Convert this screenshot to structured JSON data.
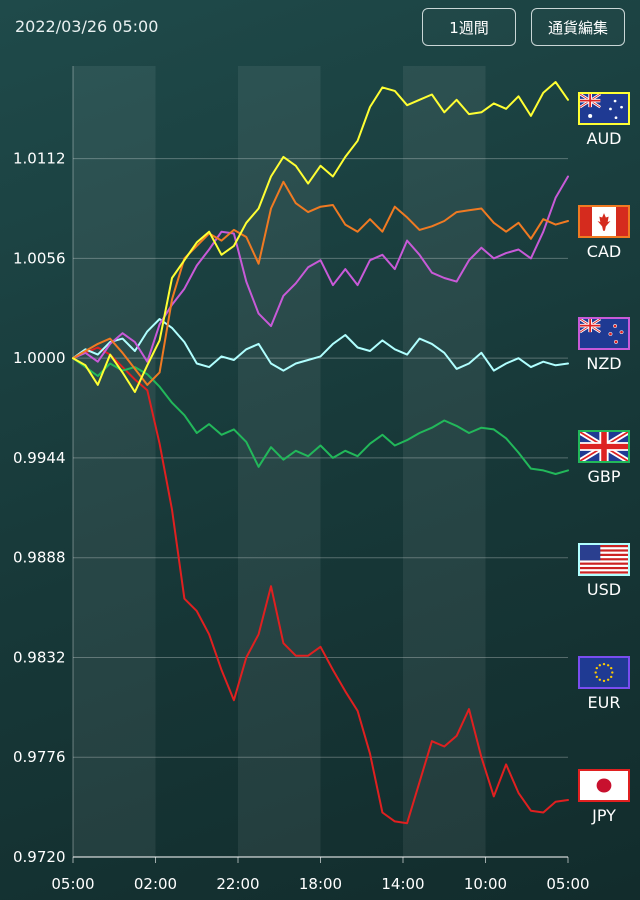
{
  "header": {
    "timestamp": "2022/03/26 05:00",
    "period_button": "1週間",
    "edit_button": "通貨編集"
  },
  "colors": {
    "AUD": "#ffff33",
    "CAD": "#f07a22",
    "NZD": "#c85ad8",
    "GBP": "#22b85a",
    "USD": "#b0ffff",
    "EUR": "#7a4df0",
    "JPY": "#e02020"
  },
  "chart_data": {
    "type": "line",
    "x_tick_labels": [
      "05:00",
      "02:00",
      "22:00",
      "18:00",
      "14:00",
      "10:00",
      "05:00"
    ],
    "y_tick_labels": [
      "1.0112",
      "1.0056",
      "1.0000",
      "0.9944",
      "0.9888",
      "0.9832",
      "0.9776",
      "0.9720"
    ],
    "ylim": [
      0.972,
      1.0164
    ],
    "grid": true,
    "legend_position": "right",
    "x": [
      0,
      3,
      6,
      9,
      12,
      15,
      18,
      21,
      24,
      27,
      30,
      33,
      36,
      39,
      42,
      45,
      48,
      51,
      54,
      57,
      60,
      63,
      66,
      69,
      72,
      75,
      78,
      81,
      84,
      87,
      90,
      93,
      96,
      99,
      102,
      105,
      108,
      111,
      114,
      117,
      120
    ],
    "series": [
      {
        "name": "AUD",
        "values": [
          1.0,
          0.9996,
          0.9985,
          1.0002,
          0.9992,
          0.9981,
          0.9996,
          1.001,
          1.0045,
          1.0055,
          1.0065,
          1.0071,
          1.0058,
          1.0063,
          1.0076,
          1.0084,
          1.0102,
          1.0113,
          1.0108,
          1.0098,
          1.0108,
          1.0102,
          1.0113,
          1.0122,
          1.0141,
          1.0152,
          1.015,
          1.0142,
          1.0145,
          1.0148,
          1.0138,
          1.0145,
          1.0137,
          1.0138,
          1.0143,
          1.014,
          1.0147,
          1.0136,
          1.0149,
          1.0155,
          1.0145
        ]
      },
      {
        "name": "CAD",
        "values": [
          1.0,
          1.0004,
          1.0008,
          1.0011,
          1.0003,
          0.9994,
          0.9985,
          0.9992,
          1.0033,
          1.0056,
          1.0063,
          1.007,
          1.0066,
          1.0072,
          1.0068,
          1.0053,
          1.0084,
          1.0099,
          1.0087,
          1.0082,
          1.0085,
          1.0086,
          1.0075,
          1.0071,
          1.0078,
          1.0071,
          1.0085,
          1.0079,
          1.0072,
          1.0074,
          1.0077,
          1.0082,
          1.0083,
          1.0084,
          1.0076,
          1.0071,
          1.0076,
          1.0067,
          1.0078,
          1.0075,
          1.0077
        ]
      },
      {
        "name": "NZD",
        "values": [
          1.0,
          1.0003,
          0.9998,
          1.0008,
          1.0014,
          1.0009,
          0.9998,
          1.0019,
          1.003,
          1.0039,
          1.0052,
          1.0061,
          1.0071,
          1.007,
          1.0043,
          1.0025,
          1.0018,
          1.0035,
          1.0042,
          1.0051,
          1.0055,
          1.0041,
          1.005,
          1.0041,
          1.0055,
          1.0058,
          1.005,
          1.0066,
          1.0058,
          1.0048,
          1.0045,
          1.0043,
          1.0055,
          1.0062,
          1.0056,
          1.0059,
          1.0061,
          1.0056,
          1.0071,
          1.009,
          1.0102
        ]
      },
      {
        "name": "GBP",
        "values": [
          1.0,
          0.9995,
          0.999,
          0.9997,
          0.9993,
          0.9995,
          0.9991,
          0.9984,
          0.9975,
          0.9968,
          0.9958,
          0.9963,
          0.9957,
          0.996,
          0.9953,
          0.9939,
          0.995,
          0.9943,
          0.9948,
          0.9945,
          0.9951,
          0.9944,
          0.9948,
          0.9945,
          0.9952,
          0.9957,
          0.9951,
          0.9954,
          0.9958,
          0.9961,
          0.9965,
          0.9962,
          0.9958,
          0.9961,
          0.996,
          0.9955,
          0.9947,
          0.9938,
          0.9937,
          0.9935,
          0.9937
        ]
      },
      {
        "name": "USD",
        "values": [
          1.0,
          1.0005,
          1.0002,
          1.0009,
          1.0011,
          1.0004,
          1.0015,
          1.0022,
          1.0017,
          1.0009,
          0.9997,
          0.9995,
          1.0001,
          0.9999,
          1.0005,
          1.0008,
          0.9997,
          0.9993,
          0.9997,
          0.9999,
          1.0001,
          1.0008,
          1.0013,
          1.0006,
          1.0004,
          1.001,
          1.0005,
          1.0002,
          1.0011,
          1.0008,
          1.0003,
          0.9994,
          0.9997,
          1.0003,
          0.9993,
          0.9997,
          1.0,
          0.9995,
          0.9998,
          0.9996,
          0.9997
        ]
      },
      {
        "name": "JPY",
        "values": [
          1.0,
          1.0003,
          1.0006,
          1.0002,
          0.9995,
          0.9988,
          0.9982,
          0.9952,
          0.9915,
          0.9865,
          0.9858,
          0.9845,
          0.9825,
          0.9808,
          0.9832,
          0.9845,
          0.9872,
          0.984,
          0.9833,
          0.9833,
          0.9838,
          0.9825,
          0.9813,
          0.9802,
          0.9778,
          0.9745,
          0.974,
          0.9739,
          0.9762,
          0.9785,
          0.9782,
          0.9788,
          0.9803,
          0.9776,
          0.9754,
          0.9772,
          0.9756,
          0.9746,
          0.9745,
          0.9751,
          0.9752
        ]
      }
    ],
    "legend": [
      "AUD",
      "CAD",
      "NZD",
      "GBP",
      "USD",
      "EUR",
      "JPY"
    ]
  }
}
